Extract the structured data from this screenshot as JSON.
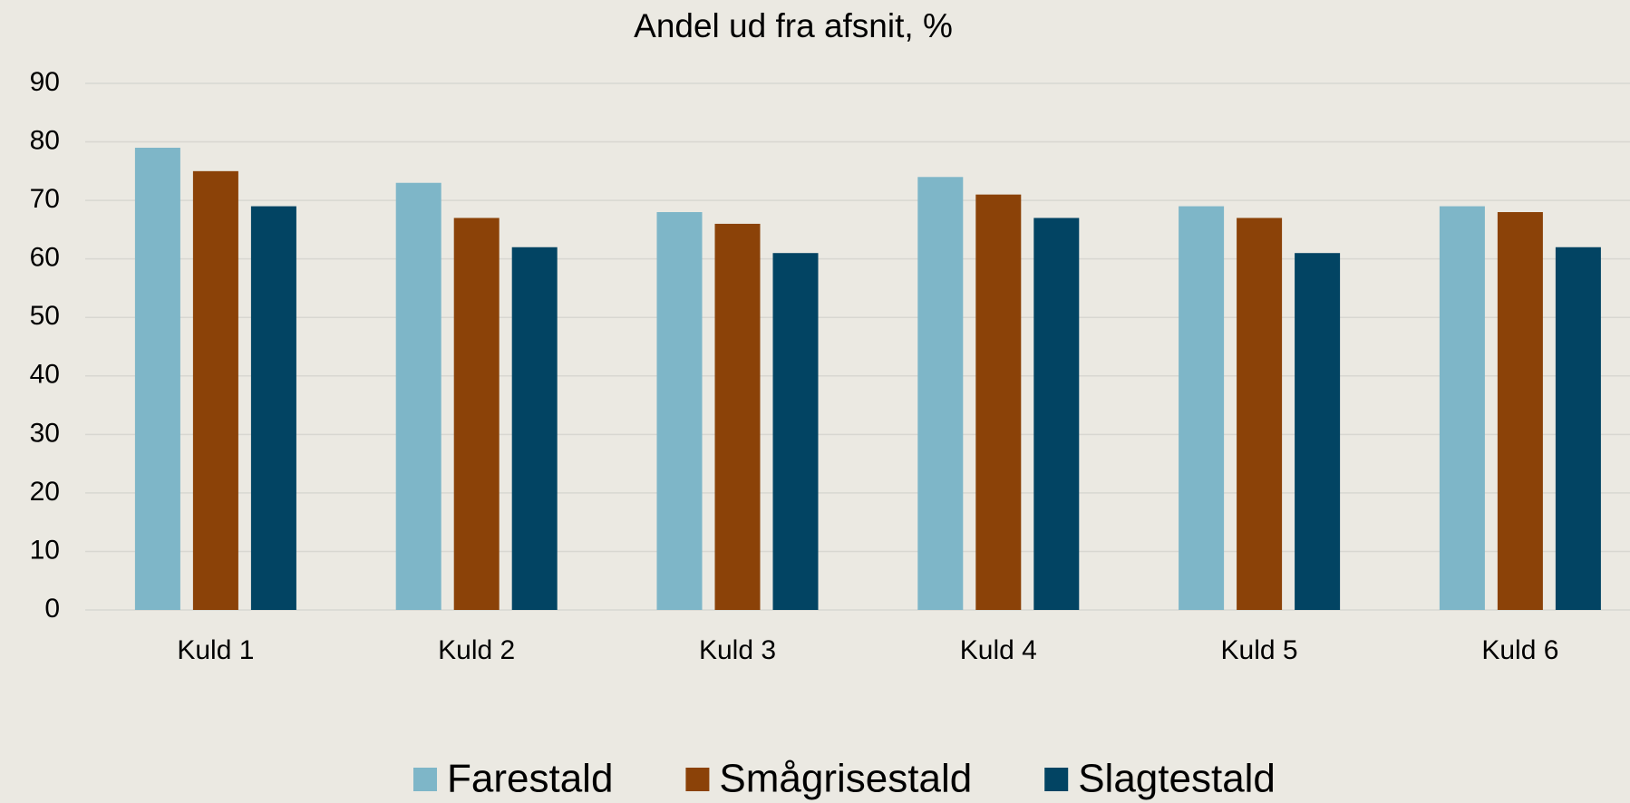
{
  "chart_data": {
    "type": "bar",
    "title": "Andel ud fra afsnit, %",
    "categories": [
      "Kuld 1",
      "Kuld 2",
      "Kuld 3",
      "Kuld 4",
      "Kuld 5",
      "Kuld 6"
    ],
    "series": [
      {
        "name": "Farestald",
        "color": "#7eb6c8",
        "values": [
          79,
          73,
          68,
          74,
          69,
          69
        ]
      },
      {
        "name": "Smågrisestald",
        "color": "#8b4208",
        "values": [
          75,
          67,
          66,
          71,
          67,
          68
        ]
      },
      {
        "name": "Slagtestald",
        "color": "#024463",
        "values": [
          69,
          62,
          61,
          67,
          61,
          62
        ]
      }
    ],
    "ylim": [
      0,
      90
    ],
    "yticks": [
      0,
      10,
      20,
      30,
      40,
      50,
      60,
      70,
      80,
      90
    ],
    "grid": true,
    "legend": "bottom"
  }
}
